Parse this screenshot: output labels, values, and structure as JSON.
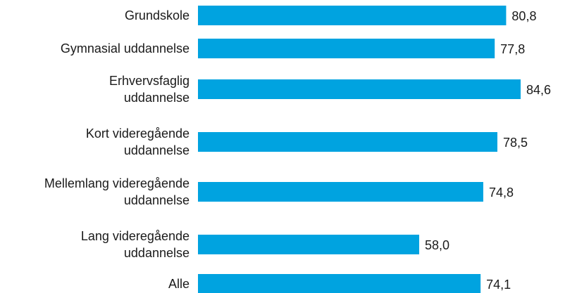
{
  "chart_data": {
    "type": "bar",
    "orientation": "horizontal",
    "categories": [
      [
        "Grundskole"
      ],
      [
        "Gymnasial uddannelse"
      ],
      [
        "Erhvervsfaglig",
        "uddannelse"
      ],
      [
        "Kort videregående",
        "uddannelse"
      ],
      [
        "Mellemlang videregående",
        "uddannelse"
      ],
      [
        "Lang videregående",
        "uddannelse"
      ],
      [
        "Alle"
      ]
    ],
    "values": [
      80.8,
      77.8,
      84.6,
      78.5,
      74.8,
      58.0,
      74.1
    ],
    "value_labels": [
      "80,8",
      "77,8",
      "84,6",
      "78,5",
      "74,8",
      "58,0",
      "74,1"
    ],
    "bar_color": "#00a3e0",
    "grid": false,
    "legend": "none",
    "xlim": [
      0,
      85
    ]
  }
}
